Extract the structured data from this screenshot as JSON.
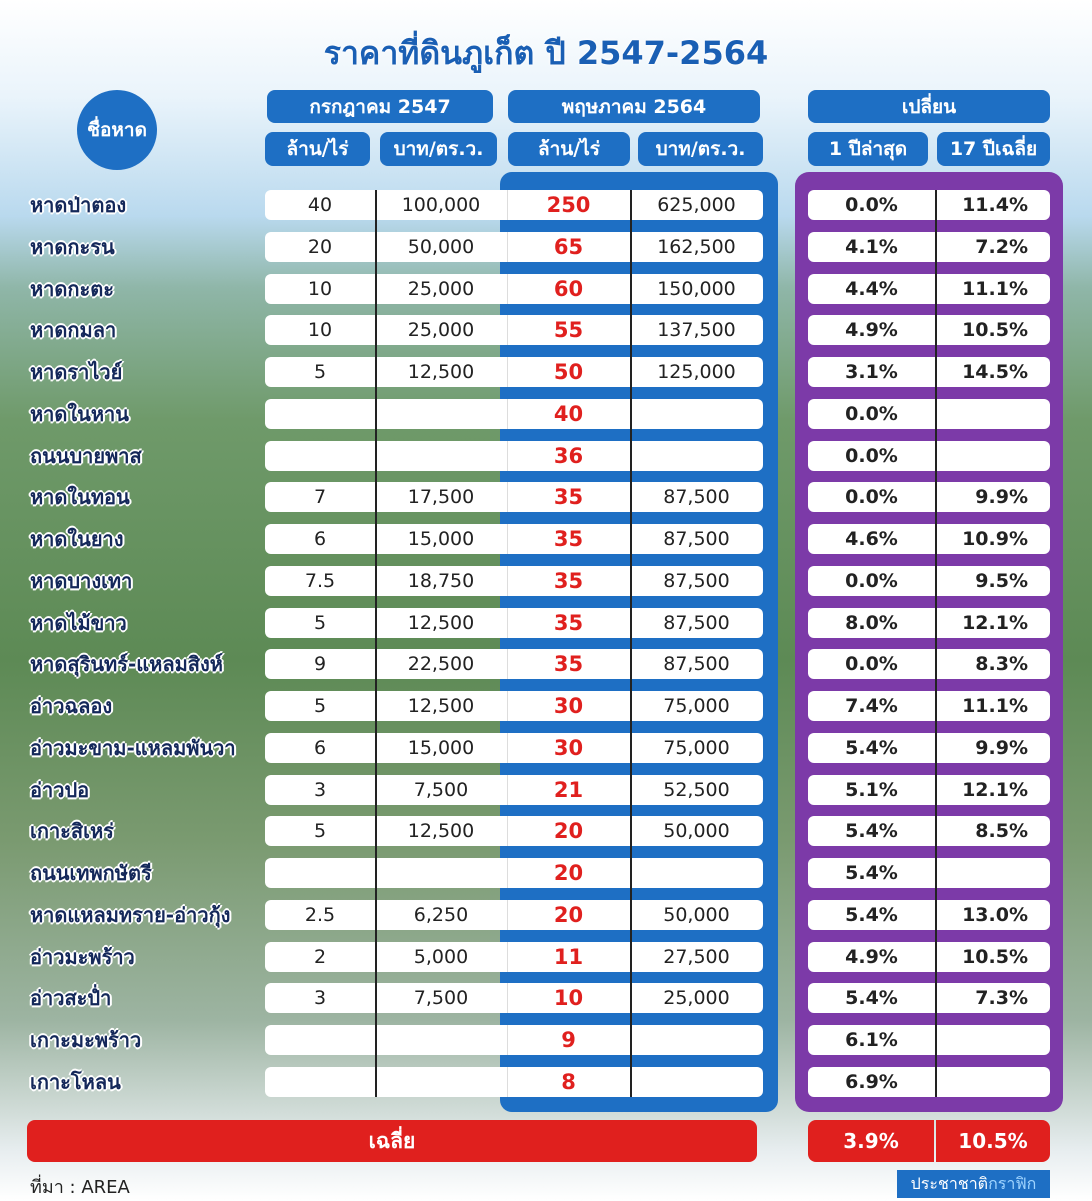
{
  "title": "ราคาที่ดินภูเก็ต ปี 2547-2564",
  "table": {
    "name_header": "ชื่อหาด",
    "group_headers": [
      "กรกฎาคม 2547",
      "พฤษภาคม 2564",
      "เปลี่ยน"
    ],
    "sub_headers": [
      "ล้าน/ไร่",
      "บาท/ตร.ว.",
      "ล้าน/ไร่",
      "บาท/ตร.ว.",
      "1 ปีล่าสุด",
      "17 ปีเฉลี่ย"
    ],
    "rows": [
      [
        "หาดป่าตอง",
        "40",
        "100,000",
        "250",
        "625,000",
        "0.0%",
        "11.4%"
      ],
      [
        "หาดกะรน",
        "20",
        "50,000",
        "65",
        "162,500",
        "4.1%",
        "7.2%"
      ],
      [
        "หาดกะตะ",
        "10",
        "25,000",
        "60",
        "150,000",
        "4.4%",
        "11.1%"
      ],
      [
        "หาดกมลา",
        "10",
        "25,000",
        "55",
        "137,500",
        "4.9%",
        "10.5%"
      ],
      [
        "หาดราไวย์",
        "5",
        "12,500",
        "50",
        "125,000",
        "3.1%",
        "14.5%"
      ],
      [
        "หาดในหาน",
        null,
        null,
        "40",
        null,
        "0.0%",
        null
      ],
      [
        "ถนนบายพาส",
        null,
        null,
        "36",
        null,
        "0.0%",
        null
      ],
      [
        "หาดในทอน",
        "7",
        "17,500",
        "35",
        "87,500",
        "0.0%",
        "9.9%"
      ],
      [
        "หาดในยาง",
        "6",
        "15,000",
        "35",
        "87,500",
        "4.6%",
        "10.9%"
      ],
      [
        "หาดบางเทา",
        "7.5",
        "18,750",
        "35",
        "87,500",
        "0.0%",
        "9.5%"
      ],
      [
        "หาดไม้ขาว",
        "5",
        "12,500",
        "35",
        "87,500",
        "8.0%",
        "12.1%"
      ],
      [
        "หาดสุรินทร์-แหลมสิงห์",
        "9",
        "22,500",
        "35",
        "87,500",
        "0.0%",
        "8.3%"
      ],
      [
        "อ่าวฉลอง",
        "5",
        "12,500",
        "30",
        "75,000",
        "7.4%",
        "11.1%"
      ],
      [
        "อ่าวมะขาม-แหลมพันวา",
        "6",
        "15,000",
        "30",
        "75,000",
        "5.4%",
        "9.9%"
      ],
      [
        "อ่าวปอ",
        "3",
        "7,500",
        "21",
        "52,500",
        "5.1%",
        "12.1%"
      ],
      [
        "เกาะสิเหร่",
        "5",
        "12,500",
        "20",
        "50,000",
        "5.4%",
        "8.5%"
      ],
      [
        "ถนนเทพกษัตรี",
        null,
        null,
        "20",
        null,
        "5.4%",
        null
      ],
      [
        "หาดแหลมทราย-อ่าวกุ้ง",
        "2.5",
        "6,250",
        "20",
        "50,000",
        "5.4%",
        "13.0%"
      ],
      [
        "อ่าวมะพร้าว",
        "2",
        "5,000",
        "11",
        "27,500",
        "4.9%",
        "10.5%"
      ],
      [
        "อ่าวสะป่ำ",
        "3",
        "7,500",
        "10",
        "25,000",
        "5.4%",
        "7.3%"
      ],
      [
        "เกาะมะพร้าว",
        null,
        null,
        "9",
        null,
        "6.1%",
        null
      ],
      [
        "เกาะโหลน",
        null,
        null,
        "8",
        null,
        "6.9%",
        null
      ]
    ],
    "footer": [
      "เฉลี่ย",
      "3.9%",
      "10.5%"
    ]
  },
  "source": "ที่มา : AREA",
  "credit": [
    "ประชาชาติ",
    "กราฟิก"
  ]
}
